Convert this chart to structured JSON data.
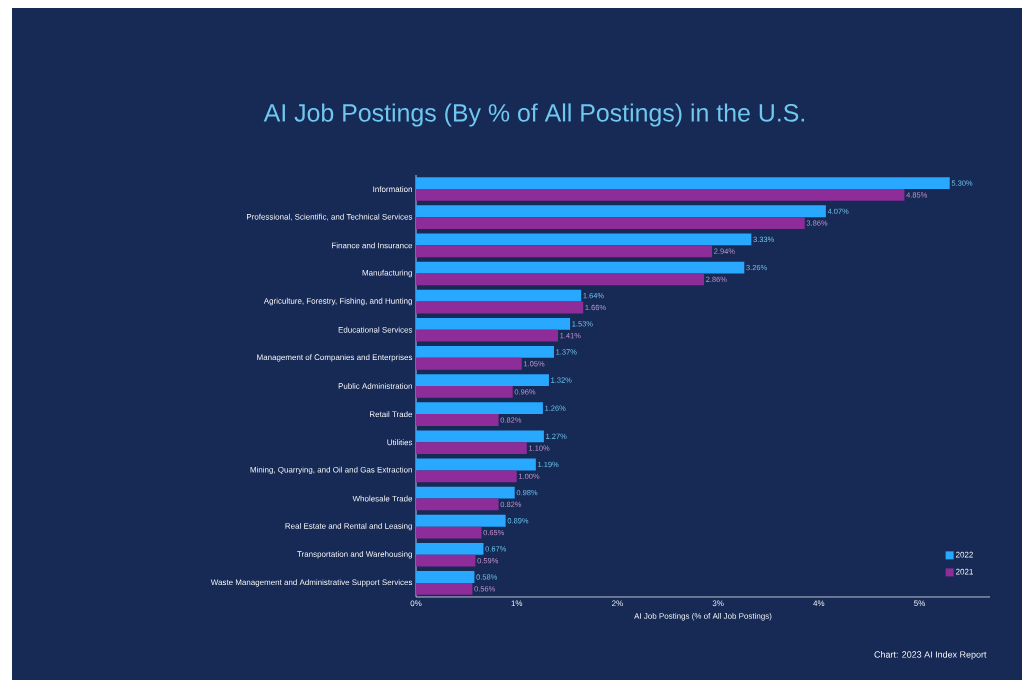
{
  "chart_data": {
    "type": "bar",
    "orientation": "horizontal",
    "title": "AI Job Postings (By % of All Postings) in the U.S.",
    "xlabel": "AI Job Postings (% of All Job Postings)",
    "annotations": [
      "Chart: 2023 AI Index Report"
    ],
    "categories": [
      "Information",
      "Professional, Scientific, and Technical Services",
      "Finance and Insurance",
      "Manufacturing",
      "Agriculture, Forestry, Fishing, and Hunting",
      "Educational Services",
      "Management of Companies and Enterprises",
      "Public Administration",
      "Retail Trade",
      "Utilities",
      "Mining, Quarrying, and Oil and Gas Extraction",
      "Wholesale Trade",
      "Real Estate and Rental and Leasing",
      "Transportation and Warehousing",
      "Waste Management and Administrative Support Services"
    ],
    "series": [
      {
        "name": "2022",
        "color": "#29a8ff",
        "values": [
          5.3,
          4.07,
          3.33,
          3.26,
          1.64,
          1.53,
          1.37,
          1.32,
          1.26,
          1.27,
          1.19,
          0.98,
          0.89,
          0.67,
          0.58
        ],
        "value_labels": [
          "5.30%",
          "4.07%",
          "3.33%",
          "3.26%",
          "1.64%",
          "1.53%",
          "1.37%",
          "1.32%",
          "1.26%",
          "1.27%",
          "1.19%",
          "0.98%",
          "0.89%",
          "0.67%",
          "0.58%"
        ]
      },
      {
        "name": "2021",
        "color": "#8e2d9a",
        "values": [
          4.85,
          3.86,
          2.94,
          2.86,
          1.66,
          1.41,
          1.05,
          0.96,
          0.82,
          1.1,
          1.0,
          0.82,
          0.65,
          0.59,
          0.56
        ],
        "value_labels": [
          "4.85%",
          "3.86%",
          "2.94%",
          "2.86%",
          "1.66%",
          "1.41%",
          "1.05%",
          "0.96%",
          "0.82%",
          "1.10%",
          "1.00%",
          "0.82%",
          "0.65%",
          "0.59%",
          "0.56%"
        ]
      }
    ],
    "xlim": [
      0,
      5.7
    ],
    "xticks": [
      {
        "value": 0,
        "label": "0%"
      },
      {
        "value": 1,
        "label": "1%"
      },
      {
        "value": 2,
        "label": "2%"
      },
      {
        "value": 3,
        "label": "3%"
      },
      {
        "value": 4,
        "label": "4%"
      },
      {
        "value": 5,
        "label": "5%"
      }
    ],
    "legend": "bottom right"
  }
}
